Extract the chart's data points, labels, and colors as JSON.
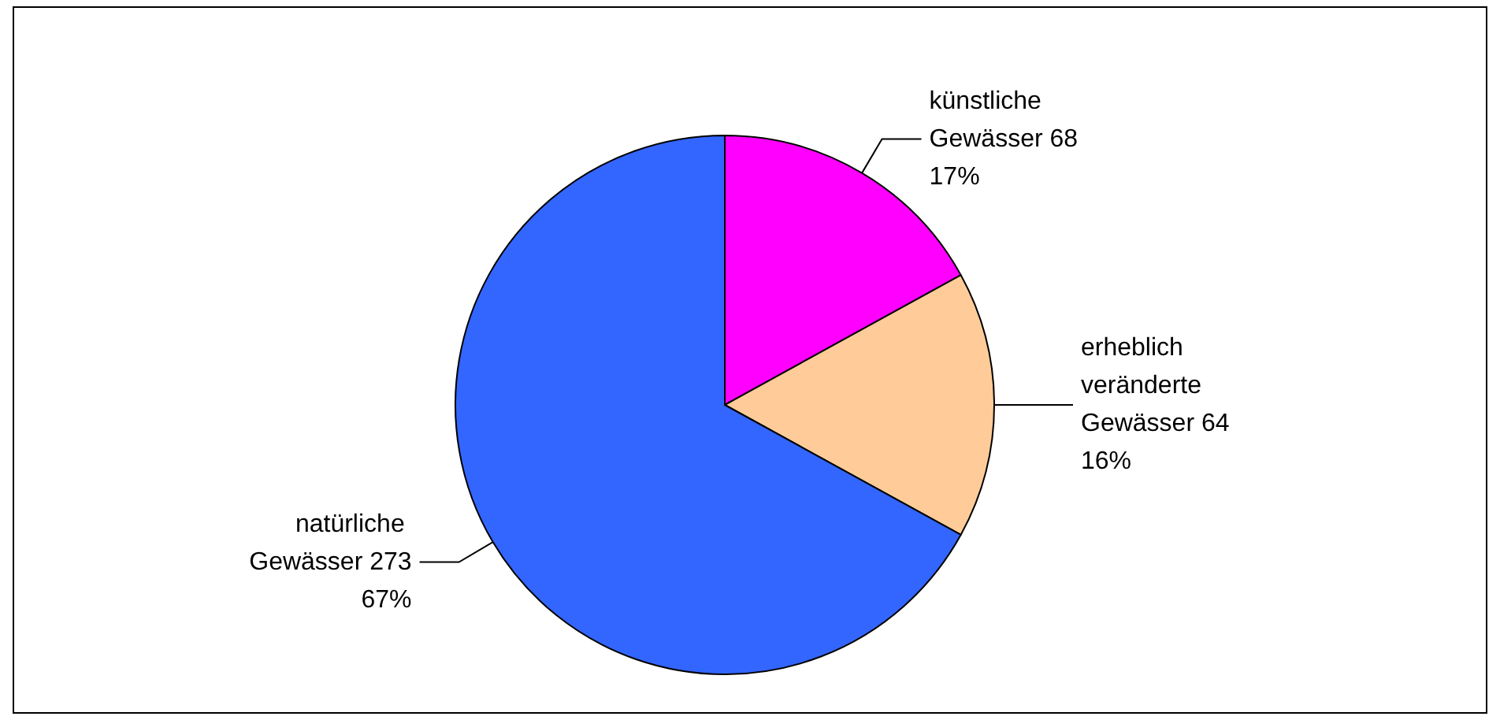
{
  "chart_data": {
    "type": "pie",
    "categories": [
      "künstliche Gewässer 68",
      "erheblich veränderte Gewässer 64",
      "natürliche Gewässer 273"
    ],
    "values": [
      17,
      16,
      67
    ],
    "colors": [
      "#ff00ff",
      "#ffcc99",
      "#3366ff"
    ],
    "value_labels": [
      "17%",
      "16%",
      "67%"
    ]
  }
}
